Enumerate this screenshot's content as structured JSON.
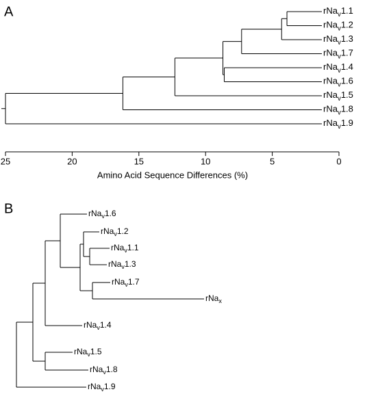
{
  "chart_data": [
    {
      "type": "dendrogram",
      "panel": "A",
      "xlabel": "Amino Acid Sequence Differences (%)",
      "xlim": [
        25,
        0
      ],
      "xticks": [
        25,
        20,
        15,
        10,
        5,
        0
      ],
      "nodes": [
        {
          "label": "rNav1.1"
        },
        {
          "label": "rNav1.2"
        },
        {
          "label": "rNav1.3"
        },
        {
          "label": "rNav1.7"
        },
        {
          "label": "rNav1.4"
        },
        {
          "label": "rNav1.6"
        },
        {
          "label": "rNav1.5"
        },
        {
          "label": "rNav1.8"
        },
        {
          "label": "rNav1.9"
        },
        {
          "value": 3.9,
          "children": [
            0,
            1
          ]
        },
        {
          "value": 4.3,
          "children": [
            9,
            2
          ]
        },
        {
          "value": 7.3,
          "children": [
            10,
            3
          ]
        },
        {
          "value": 8.6,
          "children": [
            4,
            5
          ]
        },
        {
          "value": 8.7,
          "children": [
            11,
            12
          ]
        },
        {
          "value": 12.3,
          "children": [
            13,
            6
          ]
        },
        {
          "value": 16.2,
          "children": [
            14,
            7
          ]
        },
        {
          "value": 25,
          "children": [
            15,
            8
          ]
        }
      ]
    },
    {
      "type": "tree",
      "panel": "B",
      "labels": [
        "rNav1.6",
        "rNav1.2",
        "rNav1.1",
        "rNav1.3",
        "rNav1.7",
        "rNax",
        "rNav1.4",
        "rNav1.5",
        "rNav1.8",
        "rNav1.9"
      ]
    }
  ]
}
